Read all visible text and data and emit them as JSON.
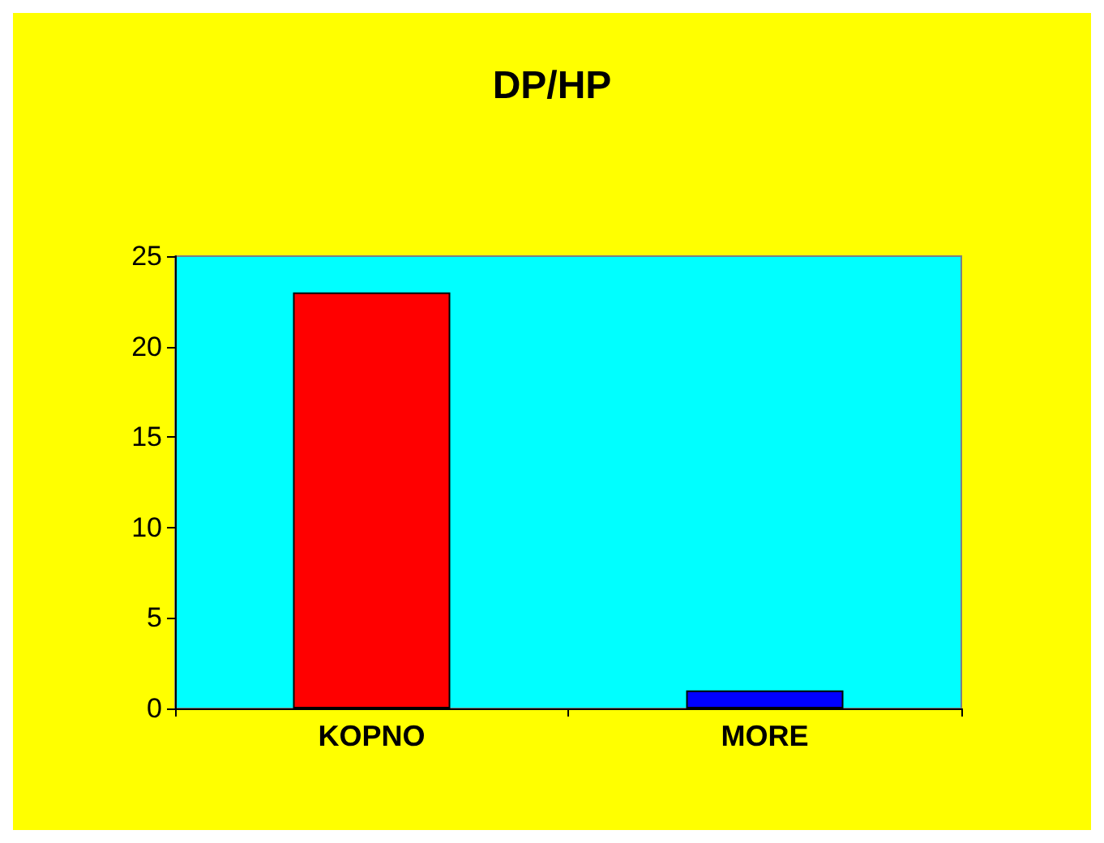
{
  "chart_data": {
    "type": "bar",
    "title": "DP/HP",
    "categories": [
      "KOPNO",
      "MORE"
    ],
    "values": [
      23,
      1
    ],
    "colors": [
      "#ff0000",
      "#0000ff"
    ],
    "ylim": [
      0,
      25
    ],
    "yticks": [
      0,
      5,
      10,
      15,
      20,
      25
    ],
    "grid": false
  }
}
